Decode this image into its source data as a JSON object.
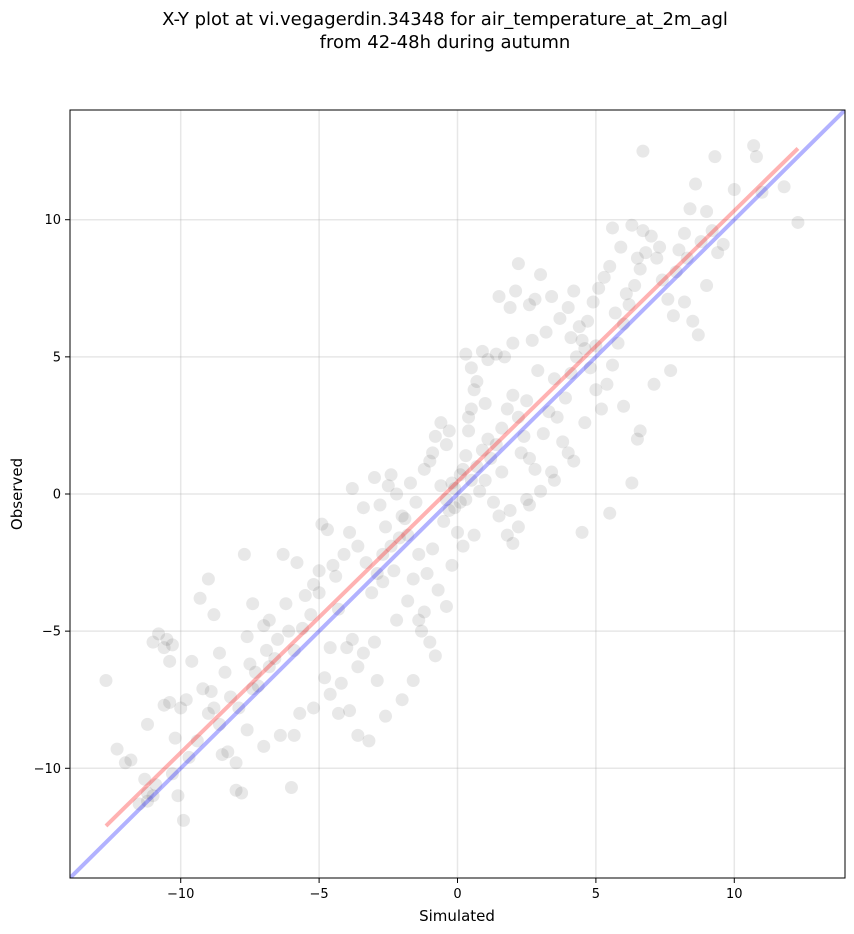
{
  "chart_data": {
    "type": "scatter",
    "title_line1": "X-Y plot at vi.vegagerdin.34348 for air_temperature_at_2m_agl",
    "title_line2": "from 42-48h during autumn",
    "xlabel": "Simulated",
    "ylabel": "Observed",
    "xlim": [
      -14,
      14
    ],
    "ylim": [
      -14,
      14
    ],
    "xticks": [
      -10,
      -5,
      0,
      5,
      10
    ],
    "yticks": [
      -10,
      -5,
      0,
      5,
      10
    ],
    "xtick_labels": [
      "−10",
      "−5",
      "0",
      "5",
      "10"
    ],
    "ytick_labels": [
      "−10",
      "−5",
      "0",
      "5",
      "10"
    ],
    "grid": true,
    "point_color": "#000000",
    "point_alpha": 0.09,
    "points": [
      [
        -12.7,
        -6.8
      ],
      [
        -12.3,
        -9.3
      ],
      [
        -12.0,
        -9.8
      ],
      [
        -11.8,
        -9.7
      ],
      [
        -11.5,
        -11.3
      ],
      [
        -11.2,
        -11.2
      ],
      [
        -11.0,
        -11.0
      ],
      [
        -10.9,
        -10.6
      ],
      [
        -11.2,
        -10.9
      ],
      [
        -11.3,
        -10.4
      ],
      [
        -11.2,
        -8.4
      ],
      [
        -11.0,
        -5.4
      ],
      [
        -10.8,
        -5.1
      ],
      [
        -10.6,
        -5.6
      ],
      [
        -10.5,
        -5.3
      ],
      [
        -10.4,
        -6.1
      ],
      [
        -10.3,
        -5.5
      ],
      [
        -10.6,
        -7.7
      ],
      [
        -10.4,
        -7.6
      ],
      [
        -10.0,
        -7.8
      ],
      [
        -9.8,
        -7.5
      ],
      [
        -10.2,
        -8.9
      ],
      [
        -10.1,
        -11.0
      ],
      [
        -9.9,
        -11.9
      ],
      [
        -9.6,
        -6.1
      ],
      [
        -9.3,
        -3.8
      ],
      [
        -9.0,
        -3.1
      ],
      [
        -8.8,
        -4.4
      ],
      [
        -8.6,
        -5.8
      ],
      [
        -8.9,
        -7.2
      ],
      [
        -8.8,
        -7.8
      ],
      [
        -8.5,
        -9.5
      ],
      [
        -8.3,
        -9.4
      ],
      [
        -8.0,
        -10.8
      ],
      [
        -7.8,
        -10.9
      ],
      [
        -7.6,
        -8.6
      ],
      [
        -7.4,
        -7.1
      ],
      [
        -7.2,
        -7.0
      ],
      [
        -7.5,
        -6.2
      ],
      [
        -7.7,
        -2.2
      ],
      [
        -7.4,
        -4.0
      ],
      [
        -7.0,
        -4.8
      ],
      [
        -6.8,
        -6.3
      ],
      [
        -6.6,
        -6.0
      ],
      [
        -6.3,
        -2.2
      ],
      [
        -6.1,
        -5.0
      ],
      [
        -5.9,
        -5.7
      ],
      [
        -5.7,
        -8.0
      ],
      [
        -5.9,
        -8.8
      ],
      [
        -6.0,
        -10.7
      ],
      [
        -5.5,
        -3.7
      ],
      [
        -5.2,
        -3.3
      ],
      [
        -5.0,
        -2.8
      ],
      [
        -4.9,
        -1.1
      ],
      [
        -4.7,
        -1.3
      ],
      [
        -4.5,
        -2.6
      ],
      [
        -4.3,
        -4.2
      ],
      [
        -4.6,
        -5.6
      ],
      [
        -4.8,
        -6.7
      ],
      [
        -4.6,
        -7.3
      ],
      [
        -4.3,
        -8.0
      ],
      [
        -3.9,
        -7.9
      ],
      [
        -3.6,
        -8.8
      ],
      [
        -3.2,
        -9.0
      ],
      [
        -4.0,
        -5.6
      ],
      [
        -3.8,
        -5.3
      ],
      [
        -3.6,
        -6.3
      ],
      [
        -3.4,
        -5.8
      ],
      [
        -3.1,
        -3.6
      ],
      [
        -2.9,
        -2.9
      ],
      [
        -2.7,
        -3.2
      ],
      [
        -2.6,
        -1.2
      ],
      [
        -2.8,
        -0.4
      ],
      [
        -3.0,
        0.6
      ],
      [
        -2.4,
        0.7
      ],
      [
        -2.2,
        0.0
      ],
      [
        -2.0,
        -0.8
      ],
      [
        -1.8,
        -1.5
      ],
      [
        -2.1,
        -1.6
      ],
      [
        -2.3,
        -2.8
      ],
      [
        -1.6,
        -3.1
      ],
      [
        -1.4,
        -4.6
      ],
      [
        -1.2,
        -4.3
      ],
      [
        -1.3,
        -5.0
      ],
      [
        -1.0,
        -5.4
      ],
      [
        -0.8,
        -5.9
      ],
      [
        -1.6,
        -6.8
      ],
      [
        -2.0,
        -7.5
      ],
      [
        -2.6,
        -8.1
      ],
      [
        -2.9,
        -6.8
      ],
      [
        -1.2,
        0.9
      ],
      [
        -1.0,
        1.2
      ],
      [
        -0.8,
        2.1
      ],
      [
        -0.6,
        2.6
      ],
      [
        -0.4,
        1.8
      ],
      [
        -0.3,
        2.3
      ],
      [
        -0.2,
        0.4
      ],
      [
        -0.1,
        -0.5
      ],
      [
        0.0,
        -1.4
      ],
      [
        0.1,
        -0.3
      ],
      [
        0.2,
        0.9
      ],
      [
        0.3,
        1.4
      ],
      [
        0.4,
        2.3
      ],
      [
        0.5,
        3.1
      ],
      [
        0.6,
        3.8
      ],
      [
        0.7,
        4.1
      ],
      [
        0.3,
        5.1
      ],
      [
        0.5,
        4.6
      ],
      [
        0.9,
        5.2
      ],
      [
        1.1,
        4.9
      ],
      [
        1.4,
        5.1
      ],
      [
        1.7,
        5.0
      ],
      [
        1.5,
        7.2
      ],
      [
        1.9,
        6.8
      ],
      [
        2.1,
        7.4
      ],
      [
        2.2,
        8.4
      ],
      [
        2.6,
        6.9
      ],
      [
        2.8,
        7.1
      ],
      [
        3.0,
        8.0
      ],
      [
        3.4,
        7.2
      ],
      [
        1.0,
        0.5
      ],
      [
        1.2,
        1.3
      ],
      [
        1.4,
        1.8
      ],
      [
        1.6,
        2.4
      ],
      [
        1.8,
        3.1
      ],
      [
        2.0,
        3.6
      ],
      [
        2.2,
        2.8
      ],
      [
        2.4,
        2.1
      ],
      [
        2.6,
        1.3
      ],
      [
        2.8,
        0.9
      ],
      [
        1.3,
        -0.3
      ],
      [
        1.5,
        -0.8
      ],
      [
        1.8,
        -1.5
      ],
      [
        2.0,
        -1.8
      ],
      [
        2.2,
        -1.2
      ],
      [
        2.6,
        -0.4
      ],
      [
        3.0,
        0.1
      ],
      [
        3.4,
        0.8
      ],
      [
        3.8,
        1.9
      ],
      [
        4.2,
        1.2
      ],
      [
        3.6,
        2.8
      ],
      [
        3.9,
        3.5
      ],
      [
        4.1,
        4.4
      ],
      [
        4.3,
        5.0
      ],
      [
        4.5,
        5.6
      ],
      [
        4.7,
        6.3
      ],
      [
        4.9,
        7.0
      ],
      [
        5.1,
        7.5
      ],
      [
        5.3,
        7.9
      ],
      [
        5.5,
        8.3
      ],
      [
        4.0,
        6.8
      ],
      [
        4.2,
        7.4
      ],
      [
        4.4,
        6.1
      ],
      [
        4.6,
        5.3
      ],
      [
        4.8,
        4.6
      ],
      [
        5.0,
        3.8
      ],
      [
        5.2,
        3.1
      ],
      [
        5.4,
        4.0
      ],
      [
        5.6,
        4.7
      ],
      [
        5.8,
        5.5
      ],
      [
        6.0,
        6.2
      ],
      [
        6.2,
        6.9
      ],
      [
        6.4,
        7.6
      ],
      [
        6.6,
        8.2
      ],
      [
        6.8,
        8.8
      ],
      [
        7.0,
        9.4
      ],
      [
        7.2,
        8.6
      ],
      [
        7.4,
        7.8
      ],
      [
        7.6,
        7.1
      ],
      [
        7.8,
        6.5
      ],
      [
        5.6,
        9.7
      ],
      [
        5.9,
        9.0
      ],
      [
        6.3,
        9.8
      ],
      [
        6.7,
        9.6
      ],
      [
        6.0,
        3.2
      ],
      [
        6.3,
        0.4
      ],
      [
        6.5,
        2.0
      ],
      [
        6.6,
        2.3
      ],
      [
        7.1,
        4.0
      ],
      [
        7.7,
        4.5
      ],
      [
        8.0,
        8.9
      ],
      [
        8.2,
        9.5
      ],
      [
        8.4,
        10.4
      ],
      [
        8.6,
        11.3
      ],
      [
        8.8,
        9.2
      ],
      [
        9.0,
        10.3
      ],
      [
        9.2,
        9.6
      ],
      [
        9.4,
        8.8
      ],
      [
        9.6,
        9.1
      ],
      [
        9.0,
        7.6
      ],
      [
        8.5,
        6.3
      ],
      [
        8.7,
        5.8
      ],
      [
        8.2,
        7.0
      ],
      [
        10.0,
        11.1
      ],
      [
        10.7,
        12.7
      ],
      [
        10.8,
        12.3
      ],
      [
        11.0,
        11.0
      ],
      [
        11.8,
        11.2
      ],
      [
        12.3,
        9.9
      ],
      [
        6.7,
        12.5
      ],
      [
        9.3,
        12.3
      ],
      [
        4.5,
        -1.4
      ],
      [
        5.5,
        -0.7
      ],
      [
        -0.5,
        -1.0
      ],
      [
        -0.3,
        -0.6
      ],
      [
        -0.1,
        0.2
      ],
      [
        0.1,
        0.7
      ],
      [
        0.3,
        -0.2
      ],
      [
        0.5,
        0.5
      ],
      [
        0.7,
        1.0
      ],
      [
        0.9,
        1.6
      ],
      [
        1.1,
        2.0
      ],
      [
        -1.5,
        -0.3
      ],
      [
        -1.7,
        0.4
      ],
      [
        -1.9,
        -0.9
      ],
      [
        -2.4,
        -1.9
      ],
      [
        -2.7,
        -2.2
      ],
      [
        -3.3,
        -2.5
      ],
      [
        -3.6,
        -1.9
      ],
      [
        -3.9,
        -1.4
      ],
      [
        -4.1,
        -2.2
      ],
      [
        -4.4,
        -3.0
      ],
      [
        -5.0,
        -3.6
      ],
      [
        -5.3,
        -4.4
      ],
      [
        -5.6,
        -4.9
      ],
      [
        -6.2,
        -4.0
      ],
      [
        -6.5,
        -5.3
      ],
      [
        -6.9,
        -5.7
      ],
      [
        -7.3,
        -6.5
      ],
      [
        -7.9,
        -7.8
      ],
      [
        -8.2,
        -7.4
      ],
      [
        -8.6,
        -8.4
      ],
      [
        -9.0,
        -8.0
      ],
      [
        -9.4,
        -9.0
      ],
      [
        -9.7,
        -9.6
      ],
      [
        -10.3,
        -10.2
      ],
      [
        -0.6,
        0.3
      ],
      [
        -0.4,
        -0.2
      ],
      [
        0.8,
        0.1
      ],
      [
        1.6,
        0.8
      ],
      [
        2.3,
        1.5
      ],
      [
        3.1,
        2.2
      ],
      [
        3.3,
        3.0
      ],
      [
        3.5,
        4.2
      ],
      [
        2.9,
        4.5
      ],
      [
        2.5,
        3.4
      ],
      [
        2.7,
        5.6
      ],
      [
        3.2,
        5.9
      ],
      [
        3.7,
        6.4
      ],
      [
        4.1,
        5.7
      ],
      [
        -2.5,
        0.3
      ],
      [
        -3.4,
        -0.5
      ],
      [
        -3.8,
        0.2
      ],
      [
        -1.4,
        -2.2
      ],
      [
        -1.1,
        -2.9
      ],
      [
        -0.7,
        -3.5
      ],
      [
        -0.4,
        -4.1
      ],
      [
        -0.2,
        -2.6
      ],
      [
        0.2,
        -1.9
      ],
      [
        0.6,
        -1.5
      ],
      [
        -5.8,
        -2.5
      ],
      [
        -6.8,
        -4.6
      ],
      [
        -7.6,
        -5.2
      ],
      [
        -8.4,
        -6.5
      ],
      [
        -9.2,
        -7.1
      ],
      [
        -8.0,
        -9.8
      ],
      [
        -7.0,
        -9.2
      ],
      [
        -6.4,
        -8.8
      ],
      [
        -5.2,
        -7.8
      ],
      [
        -4.2,
        -6.9
      ],
      [
        -3.0,
        -5.4
      ],
      [
        -2.2,
        -4.6
      ],
      [
        -1.8,
        -3.9
      ],
      [
        -0.9,
        -2.0
      ],
      [
        1.9,
        -0.6
      ],
      [
        2.5,
        -0.2
      ],
      [
        3.5,
        0.5
      ],
      [
        4.0,
        1.5
      ],
      [
        4.6,
        2.6
      ],
      [
        5.0,
        5.4
      ],
      [
        5.7,
        6.6
      ],
      [
        6.1,
        7.3
      ],
      [
        6.5,
        8.6
      ],
      [
        7.3,
        9.0
      ],
      [
        7.9,
        8.1
      ],
      [
        8.3,
        8.6
      ],
      [
        2.0,
        5.5
      ],
      [
        1.0,
        3.3
      ],
      [
        0.4,
        2.8
      ],
      [
        -0.9,
        1.5
      ]
    ],
    "fit_line": {
      "color": "#ff0000",
      "alpha": 0.3,
      "x": [
        -12.7,
        12.3
      ],
      "y": [
        -12.1,
        12.6
      ]
    },
    "identity_line": {
      "color": "#0000ff",
      "alpha": 0.3,
      "x": [
        -14,
        14
      ],
      "y": [
        -14,
        14
      ]
    }
  }
}
